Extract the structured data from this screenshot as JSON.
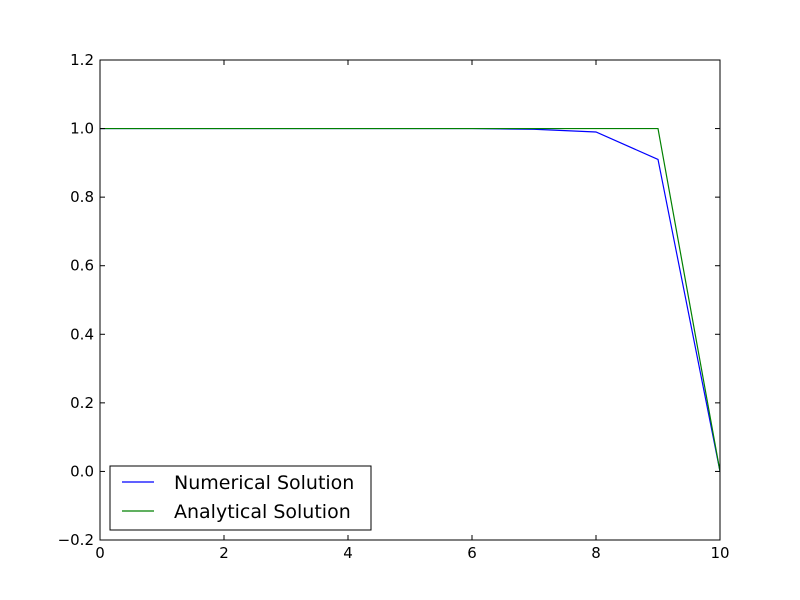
{
  "chart_data": {
    "type": "line",
    "title": "",
    "xlabel": "",
    "ylabel": "",
    "xlim": [
      0,
      10
    ],
    "ylim": [
      -0.2,
      1.2
    ],
    "x_ticks": [
      0,
      2,
      4,
      6,
      8,
      10
    ],
    "x_tick_labels": [
      "0",
      "2",
      "4",
      "6",
      "8",
      "10"
    ],
    "y_ticks": [
      -0.2,
      0.0,
      0.2,
      0.4,
      0.6,
      0.8,
      1.0,
      1.2
    ],
    "y_tick_labels": [
      "−0.2",
      "0.0",
      "0.2",
      "0.4",
      "0.6",
      "0.8",
      "1.0",
      "1.2"
    ],
    "grid": false,
    "legend_position": "bottom-left",
    "series": [
      {
        "name": "Numerical Solution",
        "color": "#0000ff",
        "x": [
          0,
          1,
          2,
          3,
          4,
          5,
          6,
          7,
          8,
          9,
          10
        ],
        "y": [
          1.0,
          1.0,
          1.0,
          1.0,
          1.0,
          1.0,
          1.0,
          0.998,
          0.99,
          0.91,
          0.0
        ]
      },
      {
        "name": "Analytical Solution",
        "color": "#008000",
        "x": [
          0,
          1,
          2,
          3,
          4,
          5,
          6,
          7,
          8,
          9,
          10
        ],
        "y": [
          1.0,
          1.0,
          1.0,
          1.0,
          1.0,
          1.0,
          1.0,
          1.0,
          1.0,
          1.0,
          0.0
        ]
      }
    ]
  }
}
